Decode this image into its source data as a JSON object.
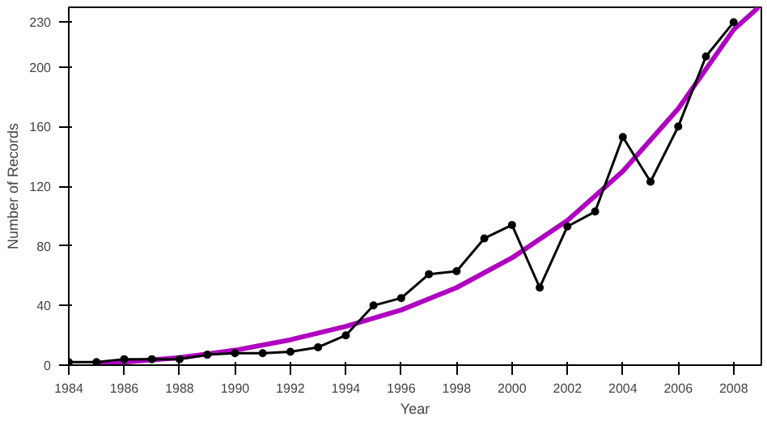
{
  "chart_data": {
    "type": "line",
    "xlabel": "Year",
    "ylabel": "Number of Records",
    "xlim": [
      1984,
      2009
    ],
    "ylim": [
      0,
      240
    ],
    "xticks": [
      1984,
      1986,
      1988,
      1990,
      1992,
      1994,
      1996,
      1998,
      2000,
      2002,
      2004,
      2006,
      2008
    ],
    "yticks": [
      0,
      40,
      80,
      120,
      160,
      200,
      230
    ],
    "grid": false,
    "series": [
      {
        "color": "#000000",
        "marker": "circle",
        "x": [
          1984,
          1985,
          1986,
          1987,
          1988,
          1989,
          1990,
          1991,
          1992,
          1993,
          1994,
          1995,
          1996,
          1997,
          1998,
          1999,
          2000,
          2001,
          2002,
          2003,
          2004,
          2005,
          2006,
          2007,
          2008
        ],
        "values": [
          2,
          2,
          4,
          4,
          4,
          7,
          8,
          8,
          9,
          12,
          20,
          40,
          45,
          61,
          63,
          85,
          94,
          52,
          93,
          103,
          153,
          123,
          160,
          207,
          230
        ]
      },
      {
        "color": "#b000c0",
        "marker": "none",
        "x": [
          1985,
          1986,
          1988,
          1990,
          1992,
          1994,
          1996,
          1998,
          2000,
          2002,
          2004,
          2006,
          2008,
          2008.9
        ],
        "values": [
          0,
          2,
          5,
          10,
          17,
          26,
          37,
          52,
          72,
          97,
          130,
          172,
          225,
          240
        ]
      }
    ]
  }
}
